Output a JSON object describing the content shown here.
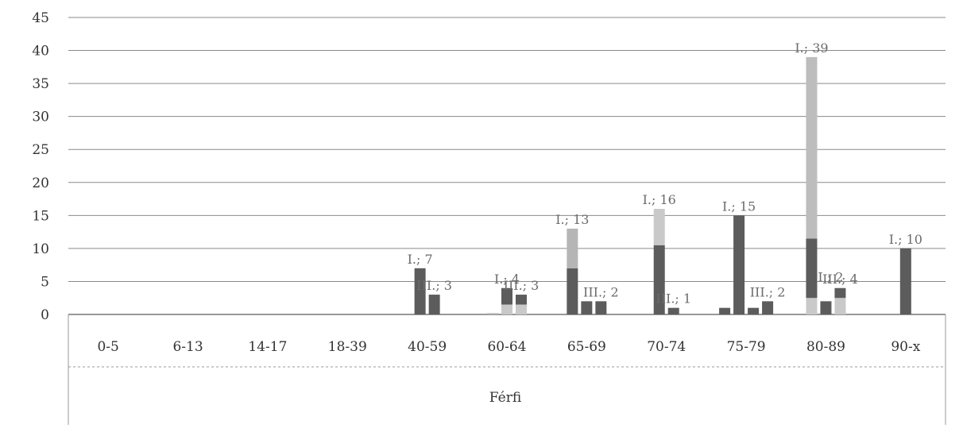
{
  "chart_data": {
    "type": "bar",
    "group_label": "Férfi",
    "categories": [
      "0-5",
      "6-13",
      "14-17",
      "18-39",
      "40-59",
      "60-64",
      "65-69",
      "70-74",
      "75-79",
      "80-89",
      "90-x"
    ],
    "ylim": [
      0,
      45
    ],
    "yticks": [
      0,
      5,
      10,
      15,
      20,
      25,
      30,
      35,
      40,
      45
    ],
    "grid": true,
    "bars": [
      {
        "category": "40-59",
        "label": "I.; 7",
        "segments": [
          {
            "value": 7,
            "color": "#5c5c5c"
          }
        ]
      },
      {
        "category": "40-59",
        "label": "III.; 3",
        "segments": [
          {
            "value": 3,
            "color": "#5c5c5c"
          }
        ]
      },
      {
        "category": "60-64",
        "label": "",
        "segments": [
          {
            "value": 0.2,
            "color": "#b5b5b5"
          }
        ]
      },
      {
        "category": "60-64",
        "label": "I.; 4",
        "segments": [
          {
            "value": 1.5,
            "color": "#c9c9c9"
          },
          {
            "value": 2.5,
            "color": "#5c5c5c"
          }
        ]
      },
      {
        "category": "60-64",
        "label": "III.; 3",
        "segments": [
          {
            "value": 1.5,
            "color": "#c9c9c9"
          },
          {
            "value": 1.5,
            "color": "#5c5c5c"
          }
        ]
      },
      {
        "category": "65-69",
        "label": "I.; 13",
        "segments": [
          {
            "value": 7,
            "color": "#5c5c5c"
          },
          {
            "value": 6,
            "color": "#b5b5b5"
          }
        ]
      },
      {
        "category": "65-69",
        "label": "",
        "segments": [
          {
            "value": 2,
            "color": "#5c5c5c"
          }
        ]
      },
      {
        "category": "65-69",
        "label": "III.; 2",
        "segments": [
          {
            "value": 2,
            "color": "#5c5c5c"
          }
        ]
      },
      {
        "category": "70-74",
        "label": "I.; 16",
        "segments": [
          {
            "value": 10.5,
            "color": "#5c5c5c"
          },
          {
            "value": 5.5,
            "color": "#c9c9c9"
          }
        ]
      },
      {
        "category": "70-74",
        "label": "III.; 1",
        "segments": [
          {
            "value": 1,
            "color": "#5c5c5c"
          }
        ]
      },
      {
        "category": "75-79",
        "label": "",
        "segments": [
          {
            "value": 1,
            "color": "#5c5c5c"
          }
        ]
      },
      {
        "category": "75-79",
        "label": "I.; 15",
        "segments": [
          {
            "value": 15,
            "color": "#5c5c5c"
          }
        ]
      },
      {
        "category": "75-79",
        "label": "",
        "segments": [
          {
            "value": 1,
            "color": "#5c5c5c"
          }
        ]
      },
      {
        "category": "75-79",
        "label": "III.; 2",
        "segments": [
          {
            "value": 2,
            "color": "#5c5c5c"
          }
        ]
      },
      {
        "category": "80-89",
        "label": "I.; 39",
        "segments": [
          {
            "value": 2.5,
            "color": "#c9c9c9"
          },
          {
            "value": 9,
            "color": "#5c5c5c"
          },
          {
            "value": 27.5,
            "color": "#bdbdbd"
          }
        ]
      },
      {
        "category": "80-89",
        "label": "",
        "segments": [
          {
            "value": 2,
            "color": "#5c5c5c"
          }
        ]
      },
      {
        "category": "80-89",
        "label": "III.; 4",
        "segments": [
          {
            "value": 2.5,
            "color": "#c9c9c9"
          },
          {
            "value": 1.5,
            "color": "#5c5c5c"
          }
        ]
      },
      {
        "category": "90-x",
        "label": "I.; 10",
        "segments": [
          {
            "value": 10,
            "color": "#5c5c5c"
          }
        ]
      }
    ],
    "extra_labels": [
      {
        "category": "80-89",
        "label": "I.; 2",
        "value": 5
      }
    ]
  }
}
